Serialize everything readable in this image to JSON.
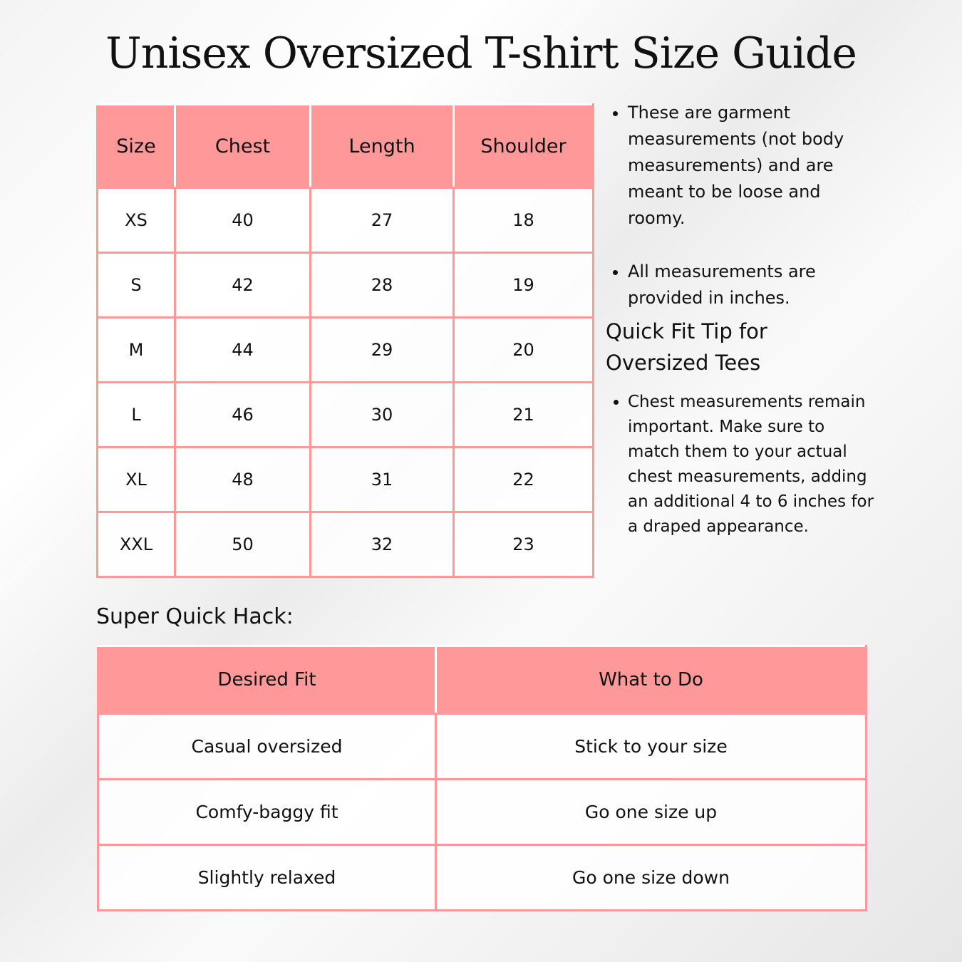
{
  "title": "Unisex Oversized T-shirt Size Guide",
  "size_table": {
    "headers": [
      "Size",
      "Chest",
      "Length",
      "Shoulder"
    ],
    "rows": [
      [
        "XS",
        "40",
        "27",
        "18"
      ],
      [
        "S",
        "42",
        "28",
        "19"
      ],
      [
        "M",
        "44",
        "29",
        "20"
      ],
      [
        "L",
        "46",
        "30",
        "21"
      ],
      [
        "XL",
        "48",
        "31",
        "22"
      ],
      [
        "XXL",
        "50",
        "32",
        "23"
      ]
    ]
  },
  "notes": [
    "These are garment measurements (not body measurements) and are meant to be loose and roomy.",
    "All measurements are provided in inches."
  ],
  "tip": {
    "heading": "Quick Fit Tip for Oversized Tees",
    "text": "Chest measurements remain important. Make sure to match them to your actual chest measurements, adding an additional 4 to 6 inches for a draped appearance."
  },
  "hack": {
    "heading": "Super Quick Hack:",
    "headers": [
      "Desired Fit",
      "What to Do"
    ],
    "rows": [
      [
        "Casual oversized",
        "Stick to your size"
      ],
      [
        "Comfy-baggy fit",
        "Go one size up"
      ],
      [
        "Slightly relaxed",
        "Go one size down"
      ]
    ]
  },
  "colors": {
    "accent": "#ff9999"
  }
}
